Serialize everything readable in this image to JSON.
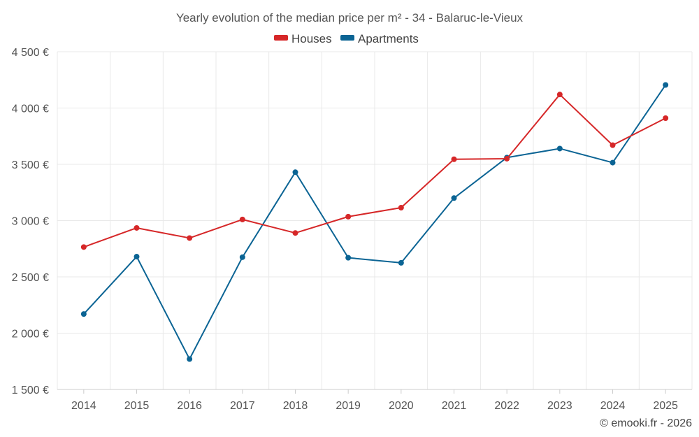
{
  "chart_data": {
    "type": "line",
    "title": "Yearly evolution of the median price per m² - 34 - Balaruc-le-Vieux",
    "categories": [
      "2014",
      "2015",
      "2016",
      "2017",
      "2018",
      "2019",
      "2020",
      "2021",
      "2022",
      "2023",
      "2024",
      "2025"
    ],
    "series": [
      {
        "name": "Houses",
        "color": "#d62728",
        "values": [
          2765,
          2935,
          2845,
          3010,
          2890,
          3035,
          3115,
          3545,
          3550,
          4120,
          3670,
          3910
        ]
      },
      {
        "name": "Apartments",
        "color": "#0b6494",
        "values": [
          2170,
          2680,
          1770,
          2675,
          3430,
          2670,
          2625,
          3200,
          3560,
          3640,
          3515,
          4205
        ]
      }
    ],
    "ylim": [
      1500,
      4500
    ],
    "yticks": [
      {
        "value": 1500,
        "label": "1 500 €"
      },
      {
        "value": 2000,
        "label": "2 000 €"
      },
      {
        "value": 2500,
        "label": "2 500 €"
      },
      {
        "value": 3000,
        "label": "3 000 €"
      },
      {
        "value": 3500,
        "label": "3 500 €"
      },
      {
        "value": 4000,
        "label": "4 000 €"
      },
      {
        "value": 4500,
        "label": "4 500 €"
      }
    ],
    "grid": true,
    "legend_position": "top-center",
    "xlabel": "",
    "ylabel": ""
  },
  "credit": "© emooki.fr - 2026"
}
